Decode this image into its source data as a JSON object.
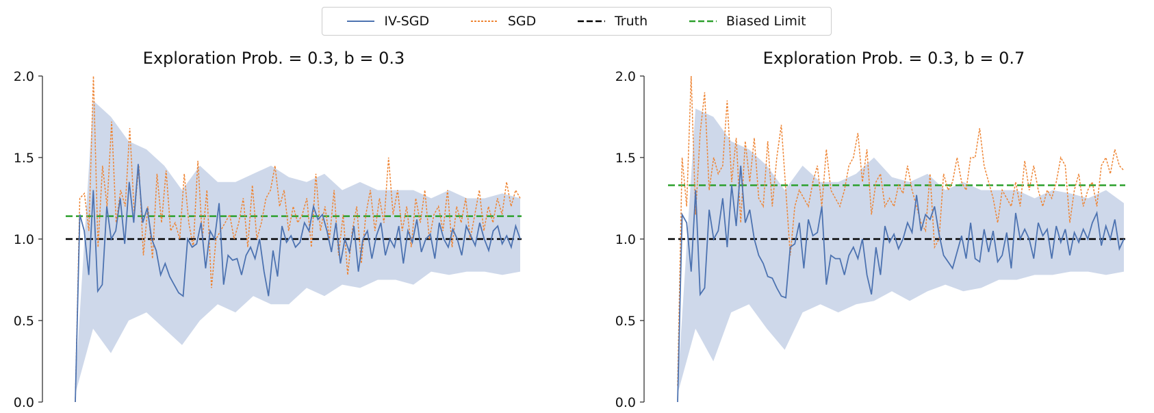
{
  "legend": {
    "placement": "top-center",
    "items": [
      {
        "label": "IV-SGD",
        "color": "#4c72b0",
        "style": "solid"
      },
      {
        "label": "SGD",
        "color": "#ee8433",
        "style": "dotted"
      },
      {
        "label": "Truth",
        "color": "#000000",
        "style": "dashed"
      },
      {
        "label": "Biased Limit",
        "color": "#2ca02c",
        "style": "dashed"
      }
    ]
  },
  "band_color": "#c9d4e8",
  "chart_data": [
    {
      "type": "line",
      "title": "Exploration Prob. = 0.3, b = 0.3",
      "ylim": [
        0,
        2.0
      ],
      "yticks": [
        "0.0",
        "0.5",
        "1.0",
        "1.5",
        "2.0"
      ],
      "grid": false,
      "truth": 1.0,
      "biased_limit": 1.14,
      "series": [
        {
          "name": "IV-SGD",
          "values": [
            0.0,
            1.15,
            1.05,
            0.78,
            1.3,
            0.68,
            0.72,
            1.2,
            1.0,
            1.05,
            1.25,
            0.97,
            1.35,
            1.1,
            1.46,
            1.1,
            1.19,
            1.0,
            0.93,
            0.78,
            0.85,
            0.77,
            0.72,
            0.67,
            0.65,
            1.0,
            0.95,
            0.97,
            1.1,
            0.82,
            1.05,
            1.0,
            1.22,
            0.72,
            0.9,
            0.87,
            0.88,
            0.78,
            0.9,
            0.95,
            0.88,
            1.0,
            0.8,
            0.65,
            0.93,
            0.77,
            1.08,
            0.98,
            1.02,
            0.95,
            0.98,
            1.1,
            1.05,
            1.2,
            1.12,
            1.15,
            1.05,
            0.92,
            1.1,
            0.85,
            1.0,
            0.92,
            1.08,
            0.8,
            1.0,
            1.05,
            0.88,
            1.02,
            1.1,
            0.9,
            1.0,
            0.95,
            1.08,
            0.85,
            1.05,
            0.98,
            1.12,
            0.92,
            1.0,
            1.03,
            0.88,
            1.1,
            1.0,
            0.95,
            1.06,
            1.0,
            0.9,
            1.08,
            1.02,
            0.96,
            1.1,
            1.0,
            0.93,
            1.05,
            1.08,
            0.97,
            1.02,
            0.95,
            1.08,
            1.0
          ]
        },
        {
          "name": "SGD",
          "values": [
            0.0,
            1.25,
            1.28,
            1.05,
            2.0,
            0.95,
            1.45,
            1.2,
            1.72,
            1.1,
            1.3,
            1.2,
            1.68,
            1.15,
            1.45,
            0.9,
            1.2,
            0.88,
            1.4,
            1.1,
            1.42,
            1.05,
            1.1,
            1.0,
            1.4,
            1.1,
            0.95,
            1.48,
            1.0,
            1.3,
            0.7,
            1.0,
            1.05,
            1.1,
            1.15,
            1.0,
            1.1,
            1.25,
            0.95,
            1.33,
            1.0,
            1.1,
            1.25,
            1.3,
            1.45,
            1.2,
            1.3,
            1.05,
            1.2,
            1.1,
            1.15,
            1.25,
            0.95,
            1.4,
            1.05,
            1.2,
            1.0,
            1.3,
            0.9,
            1.15,
            0.78,
            1.05,
            1.2,
            0.85,
            1.15,
            1.3,
            1.05,
            1.25,
            1.1,
            1.5,
            1.15,
            1.3,
            1.05,
            1.2,
            0.95,
            1.25,
            1.1,
            1.3,
            1.0,
            1.15,
            1.2,
            1.05,
            1.3,
            0.95,
            1.2,
            1.1,
            1.25,
            1.0,
            1.15,
            1.3,
            1.05,
            1.2,
            1.1,
            1.25,
            1.15,
            1.35,
            1.2,
            1.3,
            1.25
          ]
        }
      ],
      "band_lower": [
        0.05,
        0.45,
        0.3,
        0.5,
        0.55,
        0.45,
        0.35,
        0.5,
        0.6,
        0.55,
        0.65,
        0.6,
        0.6,
        0.7,
        0.65,
        0.72,
        0.7,
        0.75,
        0.75,
        0.72,
        0.8,
        0.78,
        0.8,
        0.8,
        0.78,
        0.8
      ],
      "band_upper": [
        0.1,
        1.85,
        1.75,
        1.6,
        1.55,
        1.45,
        1.3,
        1.45,
        1.35,
        1.35,
        1.4,
        1.45,
        1.38,
        1.35,
        1.4,
        1.3,
        1.35,
        1.3,
        1.3,
        1.3,
        1.25,
        1.3,
        1.25,
        1.25,
        1.28,
        1.25
      ]
    },
    {
      "type": "line",
      "title": "Exploration Prob. = 0.3, b = 0.7",
      "ylim": [
        0,
        2.0
      ],
      "yticks": [
        "0.0",
        "0.5",
        "1.0",
        "1.5",
        "2.0"
      ],
      "grid": false,
      "truth": 1.0,
      "biased_limit": 1.33,
      "series": [
        {
          "name": "IV-SGD",
          "values": [
            0.0,
            1.15,
            1.1,
            0.8,
            1.3,
            0.66,
            0.7,
            1.18,
            1.0,
            1.05,
            1.25,
            0.95,
            1.33,
            1.08,
            1.45,
            1.1,
            1.18,
            1.0,
            0.9,
            0.85,
            0.77,
            0.76,
            0.7,
            0.65,
            0.64,
            0.95,
            0.97,
            1.1,
            0.82,
            1.12,
            1.02,
            1.04,
            1.2,
            0.72,
            0.9,
            0.88,
            0.88,
            0.78,
            0.9,
            0.95,
            0.88,
            1.0,
            0.78,
            0.66,
            0.95,
            0.78,
            1.08,
            0.98,
            1.03,
            0.94,
            1.0,
            1.1,
            1.04,
            1.27,
            1.05,
            1.15,
            1.12,
            1.2,
            1.03,
            0.9,
            0.86,
            0.82,
            0.92,
            1.02,
            0.88,
            1.1,
            0.88,
            0.86,
            1.06,
            0.92,
            1.05,
            0.86,
            0.9,
            1.04,
            0.82,
            1.16,
            1.0,
            1.06,
            1.0,
            0.88,
            1.1,
            1.02,
            1.06,
            0.88,
            1.08,
            0.98,
            1.06,
            0.9,
            1.04,
            0.98,
            1.06,
            1.0,
            1.1,
            1.16,
            0.96,
            1.08,
            1.0,
            1.12,
            0.94,
            1.0
          ]
        },
        {
          "name": "SGD",
          "values": [
            0.1,
            1.5,
            1.2,
            2.0,
            1.15,
            1.65,
            1.9,
            1.3,
            1.5,
            1.4,
            1.45,
            1.85,
            1.35,
            1.62,
            1.1,
            1.6,
            1.35,
            1.62,
            1.25,
            1.2,
            1.6,
            1.2,
            1.5,
            1.7,
            1.3,
            0.9,
            1.2,
            1.3,
            1.25,
            1.2,
            1.35,
            1.45,
            1.2,
            1.55,
            1.3,
            1.25,
            1.2,
            1.3,
            1.45,
            1.5,
            1.65,
            1.35,
            1.55,
            1.15,
            1.35,
            1.4,
            1.2,
            1.25,
            1.2,
            1.33,
            1.28,
            1.45,
            1.3,
            1.2,
            1.1,
            1.05,
            1.4,
            0.95,
            1.0,
            1.4,
            1.3,
            1.35,
            1.5,
            1.35,
            1.3,
            1.5,
            1.5,
            1.68,
            1.45,
            1.35,
            1.25,
            1.1,
            1.3,
            1.25,
            1.2,
            1.35,
            1.2,
            1.48,
            1.3,
            1.45,
            1.3,
            1.2,
            1.3,
            1.25,
            1.35,
            1.5,
            1.45,
            1.1,
            1.3,
            1.4,
            1.2,
            1.3,
            1.35,
            1.2,
            1.45,
            1.5,
            1.4,
            1.55,
            1.45,
            1.42
          ]
        }
      ],
      "band_lower": [
        0.05,
        0.45,
        0.25,
        0.55,
        0.6,
        0.45,
        0.32,
        0.55,
        0.6,
        0.55,
        0.6,
        0.62,
        0.68,
        0.62,
        0.68,
        0.72,
        0.68,
        0.7,
        0.75,
        0.75,
        0.78,
        0.78,
        0.8,
        0.8,
        0.78,
        0.8
      ],
      "band_upper": [
        0.1,
        1.8,
        1.75,
        1.6,
        1.55,
        1.45,
        1.3,
        1.45,
        1.35,
        1.35,
        1.4,
        1.5,
        1.38,
        1.35,
        1.4,
        1.3,
        1.35,
        1.3,
        1.3,
        1.3,
        1.25,
        1.3,
        1.28,
        1.25,
        1.3,
        1.22
      ]
    }
  ]
}
